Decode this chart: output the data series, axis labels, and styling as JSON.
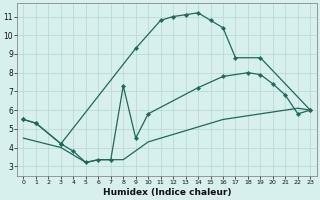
{
  "background_color": "#d7efed",
  "grid_color": "#b8dbd8",
  "line_color": "#1a6b5a",
  "xlabel": "Humidex (Indice chaleur)",
  "xlim": [
    -0.5,
    23.5
  ],
  "ylim": [
    2.5,
    11.7
  ],
  "yticks": [
    3,
    4,
    5,
    6,
    7,
    8,
    9,
    10,
    11
  ],
  "xticks": [
    0,
    1,
    2,
    3,
    4,
    5,
    6,
    7,
    8,
    9,
    10,
    11,
    12,
    13,
    14,
    15,
    16,
    17,
    18,
    19,
    20,
    21,
    22,
    23
  ],
  "curve1_x": [
    0,
    1,
    3,
    9,
    11,
    12,
    13,
    14,
    15,
    16,
    17,
    19,
    23
  ],
  "curve1_y": [
    5.5,
    5.3,
    4.2,
    9.3,
    10.8,
    11.0,
    11.1,
    11.2,
    10.8,
    10.4,
    8.8,
    8.8,
    6.0
  ],
  "curve2_x": [
    0,
    1,
    3,
    4,
    5,
    6,
    7,
    8,
    9,
    10,
    14,
    16,
    18,
    19,
    20,
    21,
    22,
    23
  ],
  "curve2_y": [
    5.5,
    5.3,
    4.2,
    3.8,
    3.2,
    3.35,
    3.35,
    7.3,
    4.5,
    5.8,
    7.2,
    7.8,
    8.0,
    7.9,
    7.4,
    6.8,
    5.8,
    6.0
  ],
  "curve3_x": [
    0,
    3,
    5,
    6,
    7,
    8,
    10,
    13,
    16,
    19,
    22,
    23
  ],
  "curve3_y": [
    4.5,
    4.0,
    3.2,
    3.35,
    3.35,
    3.35,
    4.3,
    4.9,
    5.5,
    5.8,
    6.1,
    6.0
  ],
  "marker_curve1_x": [
    0,
    1,
    3,
    9,
    11,
    12,
    13,
    14,
    15,
    16,
    17,
    19,
    23
  ],
  "marker_curve1_y": [
    5.5,
    5.3,
    4.2,
    9.3,
    10.8,
    11.0,
    11.1,
    11.2,
    10.8,
    10.4,
    8.8,
    8.8,
    6.0
  ],
  "marker_curve2_x": [
    0,
    1,
    3,
    4,
    5,
    6,
    7,
    8,
    9,
    10,
    14,
    16,
    18,
    19,
    20,
    21,
    22,
    23
  ],
  "marker_curve2_y": [
    5.5,
    5.3,
    4.2,
    3.8,
    3.2,
    3.35,
    3.35,
    7.3,
    4.5,
    5.8,
    7.2,
    7.8,
    8.0,
    7.9,
    7.4,
    6.8,
    5.8,
    6.0
  ]
}
